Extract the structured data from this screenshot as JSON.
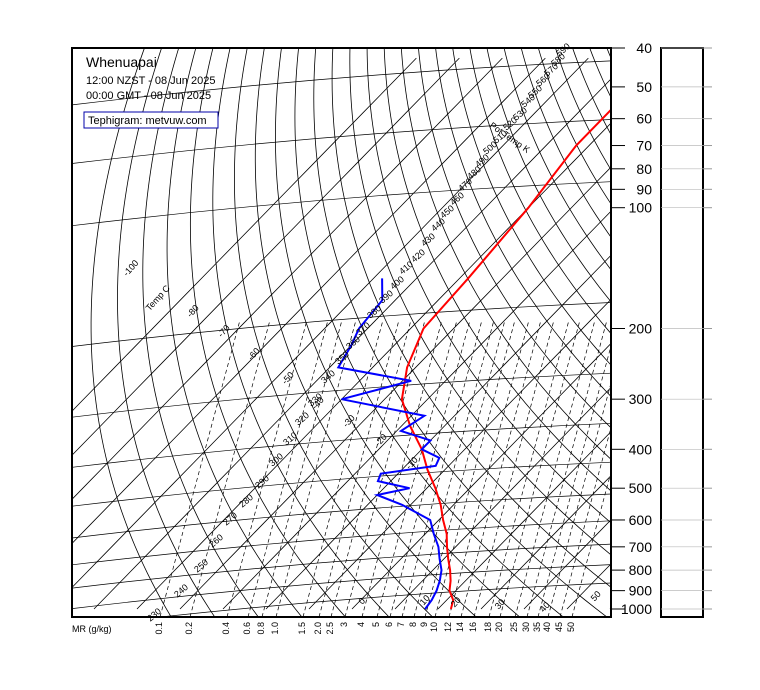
{
  "header": {
    "station": "Whenuapai",
    "local_time": "12:00 NZST - 08 Jun 2025",
    "utc_time": "00:00 GMT - 08 Jun 2025",
    "credit": "Tephigram: metvuw.com"
  },
  "chart_data": {
    "type": "line",
    "title": "Whenuapai",
    "pressure_levels_hPa": [
      40,
      50,
      60,
      70,
      80,
      90,
      100,
      200,
      300,
      400,
      500,
      600,
      700,
      800,
      900,
      1000
    ],
    "pressure_labels": [
      "40",
      "50",
      "60",
      "70",
      "80",
      "90",
      "100",
      "200",
      "300",
      "400",
      "500",
      "600",
      "700",
      "800",
      "900",
      "1000"
    ],
    "mixing_ratio_axis_label": "MR (g/kg)",
    "mixing_ratio_labels": [
      "0.1",
      "0.2",
      "0.4",
      "0.6",
      "0.8",
      "1.0",
      "1.5",
      "2.0",
      "2.5",
      "3",
      "4",
      "5",
      "6",
      "7",
      "8",
      "9",
      "10",
      "12",
      "14",
      "16",
      "18",
      "20",
      "25",
      "30",
      "35",
      "40",
      "45",
      "50"
    ],
    "temp_isotherm_labels": [
      "-100",
      "-80",
      "-70",
      "-60",
      "-50",
      "-40",
      "-30",
      "-20",
      "-10",
      "0",
      "10",
      "20",
      "30",
      "40",
      "50"
    ],
    "temp_axis_label": "Temp C",
    "pot_temp_axis_label": "Pot Temp K",
    "pot_temp_labels": [
      "230",
      "240",
      "250",
      "260",
      "270",
      "280",
      "290",
      "300",
      "310",
      "320",
      "330",
      "340",
      "350",
      "360",
      "370",
      "380",
      "390",
      "400",
      "410",
      "420",
      "430",
      "440",
      "450",
      "460",
      "470",
      "480",
      "490",
      "500",
      "510",
      "520",
      "530",
      "540",
      "550",
      "560",
      "570",
      "580",
      "590"
    ],
    "series": [
      {
        "name": "Temperature",
        "color": "#ff0000",
        "p": [
          1000,
          950,
          900,
          850,
          800,
          750,
          700,
          650,
          600,
          550,
          500,
          450,
          400,
          350,
          300,
          250,
          200,
          150,
          100,
          70,
          50,
          40
        ],
        "t": [
          13,
          11.5,
          8.5,
          6.5,
          4,
          1,
          -2,
          -5,
          -9,
          -13,
          -18,
          -24,
          -30,
          -38,
          -46,
          -52,
          -57,
          -58,
          -60,
          -63,
          -63,
          -63
        ]
      },
      {
        "name": "Dew point",
        "color": "#0000ff",
        "p": [
          1000,
          950,
          900,
          850,
          800,
          750,
          700,
          650,
          600,
          550,
          520,
          500,
          480,
          460,
          440,
          420,
          400,
          380,
          360,
          330,
          300,
          270,
          250,
          220,
          200,
          170,
          150
        ],
        "t": [
          7,
          6.5,
          5.5,
          4,
          2,
          -1,
          -4,
          -8,
          -12,
          -22,
          -30,
          -24,
          -33,
          -34,
          -23,
          -24,
          -30,
          -30,
          -39,
          -37,
          -60,
          -48,
          -68,
          -70,
          -72,
          -73,
          -78
        ]
      }
    ],
    "wind_panel": {
      "label": "",
      "values": []
    }
  },
  "colors": {
    "temperature": "#ff0000",
    "dewpoint": "#0000ff",
    "grid": "#000000",
    "credit_border": "#0000aa"
  }
}
